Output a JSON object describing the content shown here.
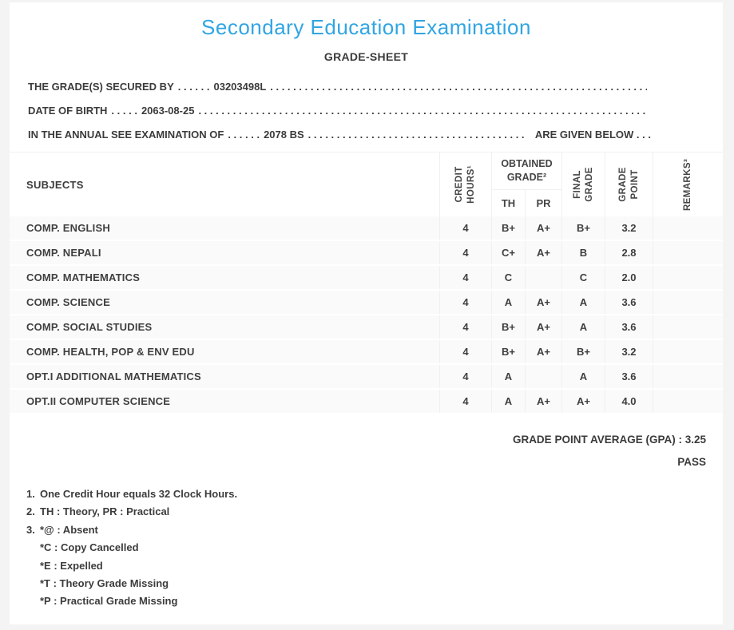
{
  "theme": {
    "accent_blue": "#31a5e3",
    "text_dark": "#3b3b3b",
    "row_bg": "#fafafa",
    "border_light": "#f0f0f0",
    "page_bg": "#f4f4f4"
  },
  "header": {
    "title": "Secondary Education Examination",
    "subtitle": "GRADE-SHEET",
    "dots_fill": ". . . . . . . . . . . . . . . . . . . . . . . . . . . . . . . . . . . . . . . . . . . . . . . . . . . . . . . . . . . . . . . . . . . . . . . . . . . . . . . . . . . . . . . . . . . . . . . . . . . . . . . . . . . . . . . . . . . . . . . . . . . . . . . . . . . .",
    "lines": [
      {
        "label": "THE GRADE(S) SECURED BY",
        "dots": ". . . . . .",
        "value": "03203498L",
        "suffix": ""
      },
      {
        "label": "DATE OF BIRTH",
        "dots": ". . . . .",
        "value": "2063-08-25",
        "suffix": ""
      },
      {
        "label": "IN THE ANNUAL SEE EXAMINATION OF",
        "dots": ". . . . . .",
        "value": "2078 BS",
        "suffix": "ARE GIVEN BELOW . . ."
      }
    ]
  },
  "table": {
    "headers": {
      "subjects": "SUBJECTS",
      "credit_hours": "CREDIT\nHOURS¹",
      "obtained_grade": "OBTAINED\nGRADE²",
      "th": "TH",
      "pr": "PR",
      "final_grade": "FINAL\nGRADE",
      "grade_point": "GRADE\nPOINT",
      "remarks": "REMARKS³"
    },
    "rows": [
      {
        "subject": "COMP. ENGLISH",
        "credit": "4",
        "th": "B+",
        "pr": "A+",
        "final": "B+",
        "point": "3.2",
        "remarks": ""
      },
      {
        "subject": "COMP. NEPALI",
        "credit": "4",
        "th": "C+",
        "pr": "A+",
        "final": "B",
        "point": "2.8",
        "remarks": ""
      },
      {
        "subject": "COMP. MATHEMATICS",
        "credit": "4",
        "th": "C",
        "pr": "",
        "final": "C",
        "point": "2.0",
        "remarks": ""
      },
      {
        "subject": "COMP. SCIENCE",
        "credit": "4",
        "th": "A",
        "pr": "A+",
        "final": "A",
        "point": "3.6",
        "remarks": ""
      },
      {
        "subject": "COMP. SOCIAL STUDIES",
        "credit": "4",
        "th": "B+",
        "pr": "A+",
        "final": "A",
        "point": "3.6",
        "remarks": ""
      },
      {
        "subject": "COMP. HEALTH, POP & ENV EDU",
        "credit": "4",
        "th": "B+",
        "pr": "A+",
        "final": "B+",
        "point": "3.2",
        "remarks": ""
      },
      {
        "subject": "OPT.I ADDITIONAL MATHEMATICS",
        "credit": "4",
        "th": "A",
        "pr": "",
        "final": "A",
        "point": "3.6",
        "remarks": ""
      },
      {
        "subject": "OPT.II COMPUTER SCIENCE",
        "credit": "4",
        "th": "A",
        "pr": "A+",
        "final": "A+",
        "point": "4.0",
        "remarks": ""
      }
    ]
  },
  "summary": {
    "gpa_label": "GRADE POINT AVERAGE (GPA) :",
    "gpa_value": "3.25",
    "result": "PASS"
  },
  "footnotes": [
    {
      "marker": "1.",
      "text": "One Credit Hour equals 32 Clock Hours."
    },
    {
      "marker": "2.",
      "text": "TH : Theory, PR : Practical"
    },
    {
      "marker": "3.",
      "text": "*@ : Absent"
    },
    {
      "marker": "",
      "text": "*C : Copy Cancelled"
    },
    {
      "marker": "",
      "text": "*E : Expelled"
    },
    {
      "marker": "",
      "text": "*T : Theory Grade Missing"
    },
    {
      "marker": "",
      "text": "*P : Practical Grade Missing"
    }
  ]
}
